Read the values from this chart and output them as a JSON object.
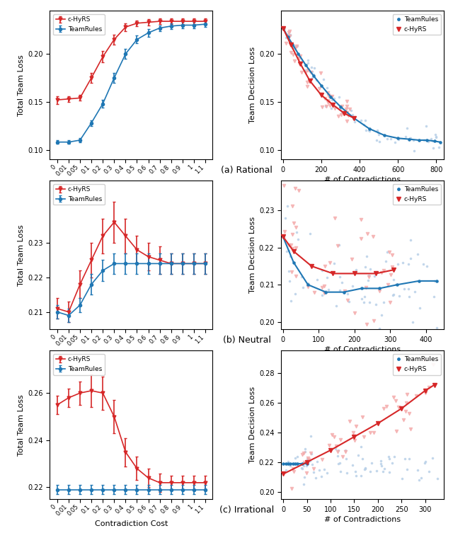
{
  "contradiction_cost_labels": [
    "0",
    "0.01",
    "0.05",
    "0.1",
    "0.2",
    "0.3",
    "0.4",
    "0.5",
    "0.6",
    "0.7",
    "0.8",
    "0.9",
    "1",
    "1.1"
  ],
  "rational": {
    "left": {
      "chyrs_mean": [
        0.152,
        0.153,
        0.154,
        0.175,
        0.197,
        0.215,
        0.228,
        0.232,
        0.233,
        0.234,
        0.234,
        0.234,
        0.234,
        0.234
      ],
      "chyrs_err": [
        0.004,
        0.003,
        0.003,
        0.005,
        0.006,
        0.005,
        0.004,
        0.003,
        0.003,
        0.003,
        0.003,
        0.003,
        0.003,
        0.003
      ],
      "teamrules_mean": [
        0.108,
        0.108,
        0.11,
        0.128,
        0.148,
        0.175,
        0.2,
        0.215,
        0.222,
        0.227,
        0.229,
        0.23,
        0.23,
        0.231
      ],
      "teamrules_err": [
        0.002,
        0.002,
        0.002,
        0.003,
        0.004,
        0.005,
        0.005,
        0.004,
        0.004,
        0.003,
        0.003,
        0.003,
        0.003,
        0.003
      ],
      "ylabel": "Total Team Loss",
      "xlabel": "Contradiction Cost",
      "ylim": [
        0.09,
        0.245
      ],
      "yticks": [
        0.1,
        0.15,
        0.2
      ],
      "legend_order": [
        "c-HyRS",
        "TeamRules"
      ]
    },
    "right": {
      "teamrules_x": [
        0,
        25,
        50,
        80,
        120,
        160,
        200,
        250,
        300,
        370,
        450,
        530,
        600,
        660,
        710,
        750,
        790,
        820
      ],
      "teamrules_y": [
        0.227,
        0.218,
        0.21,
        0.2,
        0.188,
        0.177,
        0.167,
        0.155,
        0.145,
        0.133,
        0.122,
        0.115,
        0.112,
        0.111,
        0.11,
        0.11,
        0.109,
        0.108
      ],
      "chyrs_x": [
        0,
        40,
        90,
        140,
        200,
        260,
        320,
        370
      ],
      "chyrs_y": [
        0.227,
        0.21,
        0.19,
        0.172,
        0.157,
        0.147,
        0.138,
        0.133
      ],
      "ylabel": "Team Decision Loss",
      "xlabel": "# of Contradictions",
      "xlim": [
        -10,
        840
      ],
      "ylim": [
        0.09,
        0.245
      ],
      "yticks": [
        0.1,
        0.15,
        0.2
      ],
      "legend_order": [
        "TeamRules",
        "c-HyRS"
      ]
    }
  },
  "neutral": {
    "left": {
      "chyrs_mean": [
        0.211,
        0.21,
        0.218,
        0.225,
        0.232,
        0.236,
        0.232,
        0.228,
        0.226,
        0.225,
        0.224,
        0.224,
        0.224,
        0.224
      ],
      "chyrs_err": [
        0.003,
        0.003,
        0.004,
        0.005,
        0.005,
        0.006,
        0.005,
        0.004,
        0.004,
        0.004,
        0.003,
        0.003,
        0.003,
        0.003
      ],
      "teamrules_mean": [
        0.21,
        0.209,
        0.212,
        0.218,
        0.222,
        0.224,
        0.224,
        0.224,
        0.224,
        0.224,
        0.224,
        0.224,
        0.224,
        0.224
      ],
      "teamrules_err": [
        0.002,
        0.002,
        0.002,
        0.003,
        0.003,
        0.003,
        0.003,
        0.003,
        0.003,
        0.003,
        0.003,
        0.003,
        0.003,
        0.003
      ],
      "ylabel": "Total Team Loss",
      "xlabel": "Contradiction Cost",
      "ylim": [
        0.205,
        0.248
      ],
      "yticks": [
        0.21,
        0.22,
        0.23
      ],
      "legend_order": [
        "c-HyRS",
        "TeamRules"
      ]
    },
    "right": {
      "teamrules_x": [
        0,
        30,
        70,
        120,
        170,
        220,
        270,
        320,
        380,
        430
      ],
      "teamrules_y": [
        0.223,
        0.216,
        0.21,
        0.208,
        0.208,
        0.209,
        0.209,
        0.21,
        0.211,
        0.211
      ],
      "chyrs_x": [
        0,
        30,
        80,
        140,
        200,
        260,
        310
      ],
      "chyrs_y": [
        0.223,
        0.219,
        0.215,
        0.213,
        0.213,
        0.213,
        0.214
      ],
      "ylabel": "Team Decision Loss",
      "xlabel": "# of Contradictions",
      "xlim": [
        -5,
        450
      ],
      "ylim": [
        0.198,
        0.238
      ],
      "yticks": [
        0.2,
        0.21,
        0.22,
        0.23
      ],
      "legend_order": [
        "TeamRules",
        "c-HyRS"
      ]
    }
  },
  "irrational": {
    "left": {
      "chyrs_mean": [
        0.255,
        0.258,
        0.26,
        0.261,
        0.26,
        0.25,
        0.235,
        0.228,
        0.224,
        0.222,
        0.222,
        0.222,
        0.222,
        0.222
      ],
      "chyrs_err": [
        0.004,
        0.004,
        0.005,
        0.007,
        0.007,
        0.007,
        0.006,
        0.005,
        0.004,
        0.004,
        0.003,
        0.003,
        0.003,
        0.003
      ],
      "teamrules_mean": [
        0.219,
        0.219,
        0.219,
        0.219,
        0.219,
        0.219,
        0.219,
        0.219,
        0.219,
        0.219,
        0.219,
        0.219,
        0.219,
        0.219
      ],
      "teamrules_err": [
        0.002,
        0.002,
        0.002,
        0.002,
        0.002,
        0.002,
        0.002,
        0.002,
        0.002,
        0.002,
        0.002,
        0.002,
        0.002,
        0.002
      ],
      "ylabel": "Total Team Loss",
      "xlabel": "Contradiction Cost",
      "ylim": [
        0.215,
        0.278
      ],
      "yticks": [
        0.22,
        0.24,
        0.26
      ],
      "legend_order": [
        "c-HyRS",
        "TeamRules"
      ]
    },
    "right": {
      "teamrules_x": [
        0,
        5,
        10,
        15,
        20,
        25,
        30,
        40,
        50
      ],
      "teamrules_y": [
        0.219,
        0.219,
        0.219,
        0.219,
        0.219,
        0.219,
        0.219,
        0.219,
        0.219
      ],
      "chyrs_x": [
        0,
        50,
        100,
        150,
        200,
        250,
        300,
        320
      ],
      "chyrs_y": [
        0.212,
        0.22,
        0.228,
        0.237,
        0.246,
        0.256,
        0.268,
        0.272
      ],
      "ylabel": "Team Decision Loss",
      "xlabel": "# of Contradictions",
      "xlim": [
        -5,
        340
      ],
      "ylim": [
        0.195,
        0.295
      ],
      "yticks": [
        0.2,
        0.22,
        0.24,
        0.26,
        0.28
      ],
      "legend_order": [
        "TeamRules",
        "c-HyRS"
      ]
    }
  },
  "subplot_labels": [
    "(a) Rational",
    "(b) Neutral",
    "(c) Irrational"
  ],
  "red_color": "#d62728",
  "blue_color": "#1f77b4",
  "red_scatter_color": "#f4a9a9",
  "blue_scatter_color": "#b8d0e8"
}
